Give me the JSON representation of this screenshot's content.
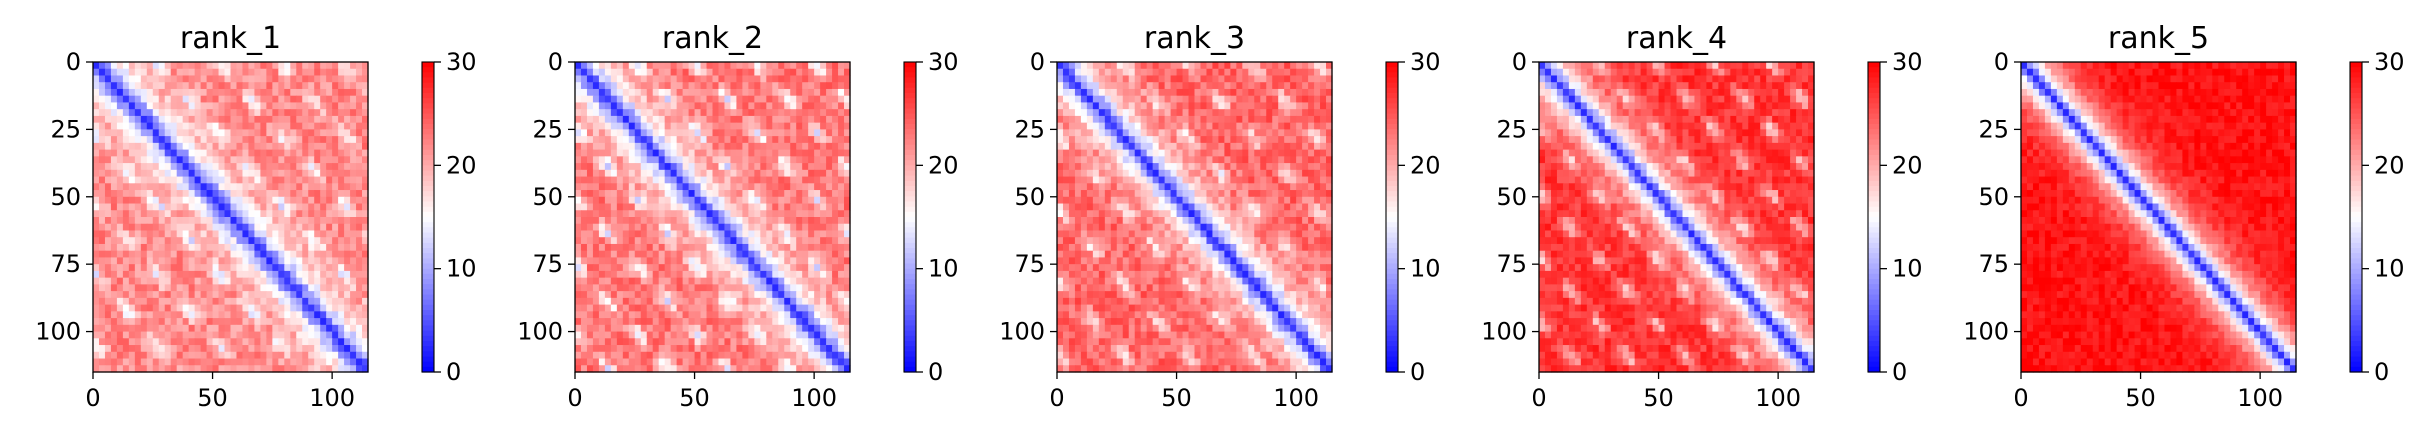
{
  "chart_data": [
    {
      "type": "heatmap",
      "title": "rank_1",
      "xlim": [
        0,
        115
      ],
      "ylim": [
        115,
        0
      ],
      "x_ticks": [
        "0",
        "50",
        "100"
      ],
      "y_ticks": [
        "0",
        "25",
        "50",
        "75",
        "100"
      ],
      "colorbar": {
        "cmap": "bwr",
        "vmin": 0,
        "vmax": 30,
        "ticks": [
          "0",
          "10",
          "20",
          "30"
        ]
      },
      "pattern": {
        "size": 115,
        "near_diagonal": 2,
        "background": 22,
        "contact_band_depth": 0.35,
        "contact_period": 26,
        "noise": 2.5,
        "seed": 11
      }
    },
    {
      "type": "heatmap",
      "title": "rank_2",
      "xlim": [
        0,
        115
      ],
      "ylim": [
        115,
        0
      ],
      "x_ticks": [
        "0",
        "50",
        "100"
      ],
      "y_ticks": [
        "0",
        "25",
        "50",
        "75",
        "100"
      ],
      "colorbar": {
        "cmap": "bwr",
        "vmin": 0,
        "vmax": 30,
        "ticks": [
          "0",
          "10",
          "20",
          "30"
        ]
      },
      "pattern": {
        "size": 115,
        "near_diagonal": 2,
        "background": 23,
        "contact_band_depth": 0.38,
        "contact_period": 25,
        "noise": 2.5,
        "seed": 23
      }
    },
    {
      "type": "heatmap",
      "title": "rank_3",
      "xlim": [
        0,
        115
      ],
      "ylim": [
        115,
        0
      ],
      "x_ticks": [
        "0",
        "50",
        "100"
      ],
      "y_ticks": [
        "0",
        "25",
        "50",
        "75",
        "100"
      ],
      "colorbar": {
        "cmap": "bwr",
        "vmin": 0,
        "vmax": 30,
        "ticks": [
          "0",
          "10",
          "20",
          "30"
        ]
      },
      "pattern": {
        "size": 115,
        "near_diagonal": 2,
        "background": 24,
        "contact_band_depth": 0.3,
        "contact_period": 27,
        "noise": 2.5,
        "seed": 37
      }
    },
    {
      "type": "heatmap",
      "title": "rank_4",
      "xlim": [
        0,
        115
      ],
      "ylim": [
        115,
        0
      ],
      "x_ticks": [
        "0",
        "50",
        "100"
      ],
      "y_ticks": [
        "0",
        "25",
        "50",
        "75",
        "100"
      ],
      "colorbar": {
        "cmap": "bwr",
        "vmin": 0,
        "vmax": 30,
        "ticks": [
          "0",
          "10",
          "20",
          "30"
        ]
      },
      "pattern": {
        "size": 115,
        "near_diagonal": 2,
        "background": 27,
        "contact_band_depth": 0.33,
        "contact_period": 24,
        "noise": 2.0,
        "seed": 51
      }
    },
    {
      "type": "heatmap",
      "title": "rank_5",
      "xlim": [
        0,
        115
      ],
      "ylim": [
        115,
        0
      ],
      "x_ticks": [
        "0",
        "50",
        "100"
      ],
      "y_ticks": [
        "0",
        "25",
        "50",
        "75",
        "100"
      ],
      "colorbar": {
        "cmap": "bwr",
        "vmin": 0,
        "vmax": 30,
        "ticks": [
          "0",
          "10",
          "20",
          "30"
        ]
      },
      "pattern": {
        "size": 115,
        "near_diagonal": 2,
        "background": 29,
        "contact_band_depth": 0.0,
        "contact_period": 26,
        "noise": 1.5,
        "seed": 67
      }
    }
  ]
}
